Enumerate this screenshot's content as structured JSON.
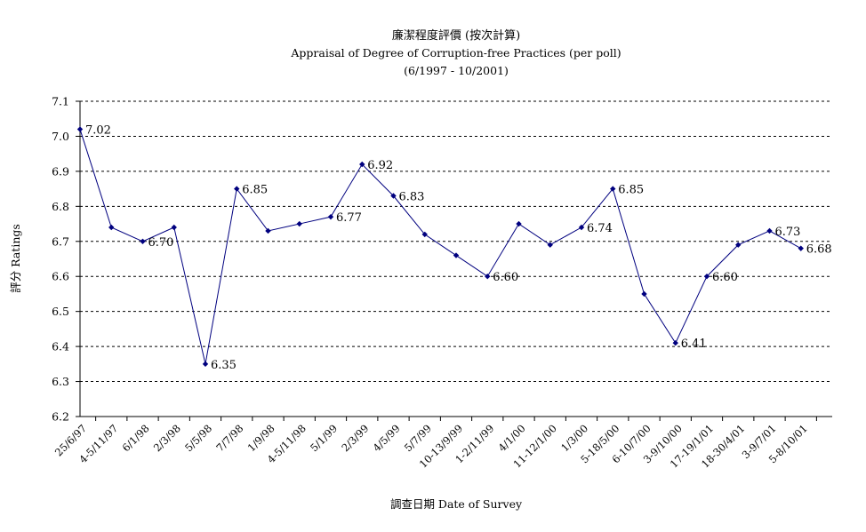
{
  "chart_data": {
    "type": "line",
    "title_cn": "廉潔程度評價 (按次計算)",
    "title": "Appraisal of Degree of Corruption-free Practices (per poll)",
    "subtitle": "(6/1997 - 10/2001)",
    "xlabel": "調查日期 Date of Survey",
    "ylabel": "評分 Ratings",
    "ylim": [
      6.2,
      7.1
    ],
    "yticks": [
      "6.2",
      "6.3",
      "6.4",
      "6.5",
      "6.6",
      "6.7",
      "6.8",
      "6.9",
      "7.0",
      "7.1"
    ],
    "grid": true,
    "color": "#00007f",
    "categories": [
      "25/6/97",
      "4-5/11/97",
      "6/1/98",
      "2/3/98",
      "5/5/98",
      "7/7/98",
      "1/9/98",
      "4-5/11/98",
      "5/1/99",
      "2/3/99",
      "4/5/99",
      "5/7/99",
      "10-13/9/99",
      "1-2/11/99",
      "4/1/00",
      "11-12/1/00",
      "1/3/00",
      "5-18/5/00",
      "6-10/7/00",
      "3-9/10/00",
      "17-19/1/01",
      "18-30/4/01",
      "3-9/7/01",
      "5-8/10/01"
    ],
    "values": [
      7.02,
      6.74,
      6.7,
      6.74,
      6.35,
      6.85,
      6.73,
      6.75,
      6.77,
      6.92,
      6.83,
      6.72,
      6.66,
      6.6,
      6.75,
      6.69,
      6.74,
      6.85,
      6.55,
      6.41,
      6.6,
      6.69,
      6.73,
      6.68
    ],
    "data_labels": [
      {
        "index": 0,
        "text": "7.02"
      },
      {
        "index": 2,
        "text": "6.70"
      },
      {
        "index": 4,
        "text": "6.35"
      },
      {
        "index": 5,
        "text": "6.85"
      },
      {
        "index": 8,
        "text": "6.77"
      },
      {
        "index": 9,
        "text": "6.92"
      },
      {
        "index": 10,
        "text": "6.83"
      },
      {
        "index": 13,
        "text": "6.60"
      },
      {
        "index": 16,
        "text": "6.74"
      },
      {
        "index": 17,
        "text": "6.85"
      },
      {
        "index": 19,
        "text": "6.41"
      },
      {
        "index": 20,
        "text": "6.60"
      },
      {
        "index": 22,
        "text": "6.73"
      },
      {
        "index": 23,
        "text": "6.68"
      }
    ]
  }
}
